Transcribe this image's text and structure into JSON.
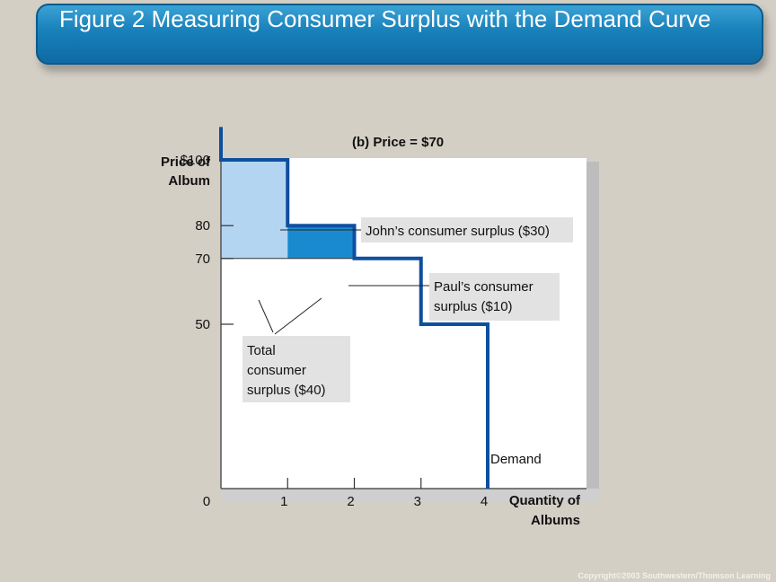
{
  "title": "Figure 2 Measuring Consumer Surplus with the Demand Curve",
  "footer": "Copyright©2003 Southwestern/Thomson Learning",
  "colors": {
    "demand_line": "#0e4fa0",
    "john_surplus": "#b3d5f2",
    "paul_surplus": "#1a8ad0",
    "plot_bg": "#ffffff",
    "callout_bg": "#e2e2e2"
  },
  "chart_data": {
    "type": "line",
    "subtitle": "(b) Price = $70",
    "ylabel": [
      "Price of",
      "Album"
    ],
    "xlabel": [
      "Quantity of",
      "Albums"
    ],
    "origin_label": "0",
    "x_ticks": [
      {
        "value": 1,
        "label": "1"
      },
      {
        "value": 2,
        "label": "2"
      },
      {
        "value": 3,
        "label": "3"
      },
      {
        "value": 4,
        "label": "4"
      }
    ],
    "y_ticks": [
      {
        "value": 100,
        "label": "$100"
      },
      {
        "value": 80,
        "label": "80"
      },
      {
        "value": 70,
        "label": "70"
      },
      {
        "value": 50,
        "label": "50"
      }
    ],
    "xlim": [
      0,
      4.5
    ],
    "ylim": [
      0,
      110
    ],
    "price_line": 70,
    "series": [
      {
        "name": "Demand",
        "step_points": [
          [
            0,
            110
          ],
          [
            0,
            100
          ],
          [
            1,
            100
          ],
          [
            1,
            80
          ],
          [
            2,
            80
          ],
          [
            2,
            70
          ],
          [
            3,
            70
          ],
          [
            3,
            50
          ],
          [
            4,
            50
          ],
          [
            4,
            0
          ]
        ]
      }
    ],
    "areas": [
      {
        "name": "John",
        "x": [
          0,
          1
        ],
        "y": [
          70,
          100
        ]
      },
      {
        "name": "Paul",
        "x": [
          1,
          2
        ],
        "y": [
          70,
          80
        ]
      }
    ],
    "annotations": {
      "john": "John’s consumer surplus ($30)",
      "paul": [
        "Paul’s consumer",
        "surplus ($10)"
      ],
      "total": [
        "Total",
        "consumer",
        "surplus ($40)"
      ]
    }
  }
}
